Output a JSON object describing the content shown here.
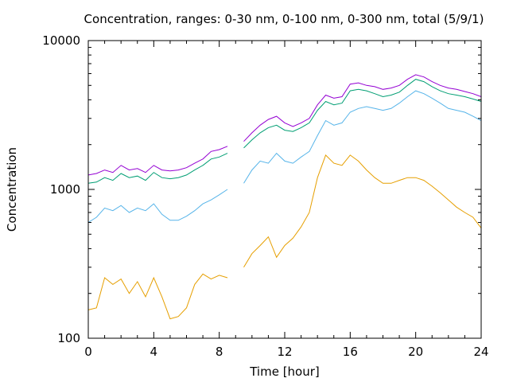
{
  "chart_data": {
    "type": "line",
    "title": "Concentration, ranges: 0-30 nm, 0-100 nm, 0-300 nm, total (5/9/1)",
    "xlabel": "Time [hour]",
    "ylabel": "Concentration",
    "xlim": [
      0,
      24
    ],
    "ylim": [
      100,
      10000
    ],
    "y_scale": "log",
    "x_ticks": [
      "0",
      "4",
      "8",
      "12",
      "16",
      "20",
      "24"
    ],
    "x_tick_values": [
      0,
      4,
      8,
      12,
      16,
      20,
      24
    ],
    "y_ticks": [
      "100",
      "1000",
      "10000"
    ],
    "y_tick_values": [
      100,
      1000,
      10000
    ],
    "grid": false,
    "x": [
      0,
      0.5,
      1,
      1.5,
      2,
      2.5,
      3,
      3.5,
      4,
      4.5,
      5,
      5.5,
      6,
      6.5,
      7,
      7.5,
      8,
      8.5,
      9,
      9.5,
      10,
      10.5,
      11,
      11.5,
      12,
      12.5,
      13,
      13.5,
      14,
      14.5,
      15,
      15.5,
      16,
      16.5,
      17,
      17.5,
      18,
      18.5,
      19,
      19.5,
      20,
      20.5,
      21,
      21.5,
      22,
      22.5,
      23,
      23.5,
      24
    ],
    "series": [
      {
        "color": "#e69f00",
        "values": [
          155,
          160,
          255,
          230,
          250,
          200,
          240,
          190,
          255,
          190,
          135,
          140,
          160,
          230,
          270,
          250,
          265,
          255,
          null,
          300,
          370,
          420,
          480,
          350,
          420,
          470,
          560,
          700,
          1200,
          1700,
          1500,
          1450,
          1700,
          1550,
          1350,
          1200,
          1100,
          1100,
          1150,
          1200,
          1200,
          1150,
          1050,
          950,
          850,
          760,
          700,
          650,
          550
        ]
      },
      {
        "color": "#56b4e9",
        "values": [
          600,
          650,
          750,
          720,
          780,
          700,
          750,
          720,
          800,
          680,
          620,
          620,
          660,
          720,
          800,
          850,
          920,
          1000,
          null,
          1100,
          1350,
          1550,
          1500,
          1750,
          1550,
          1500,
          1650,
          1800,
          2300,
          2900,
          2700,
          2800,
          3300,
          3500,
          3600,
          3500,
          3400,
          3500,
          3800,
          4200,
          4600,
          4400,
          4100,
          3800,
          3500,
          3400,
          3300,
          3100,
          2900
        ]
      },
      {
        "color": "#009e73",
        "values": [
          1100,
          1120,
          1200,
          1150,
          1280,
          1200,
          1230,
          1150,
          1300,
          1200,
          1180,
          1200,
          1250,
          1350,
          1450,
          1600,
          1650,
          1750,
          null,
          1900,
          2150,
          2400,
          2600,
          2700,
          2500,
          2450,
          2600,
          2800,
          3400,
          3900,
          3700,
          3800,
          4600,
          4700,
          4600,
          4400,
          4200,
          4300,
          4500,
          5000,
          5500,
          5300,
          4900,
          4600,
          4400,
          4300,
          4200,
          4050,
          3900
        ]
      },
      {
        "color": "#9400d3",
        "values": [
          1250,
          1280,
          1350,
          1300,
          1450,
          1350,
          1380,
          1300,
          1450,
          1350,
          1330,
          1350,
          1400,
          1500,
          1600,
          1800,
          1850,
          1950,
          null,
          2100,
          2400,
          2700,
          2950,
          3100,
          2800,
          2650,
          2800,
          3000,
          3700,
          4300,
          4100,
          4200,
          5100,
          5200,
          5000,
          4900,
          4700,
          4800,
          5000,
          5500,
          5900,
          5700,
          5300,
          5000,
          4800,
          4700,
          4550,
          4400,
          4200
        ]
      }
    ]
  }
}
